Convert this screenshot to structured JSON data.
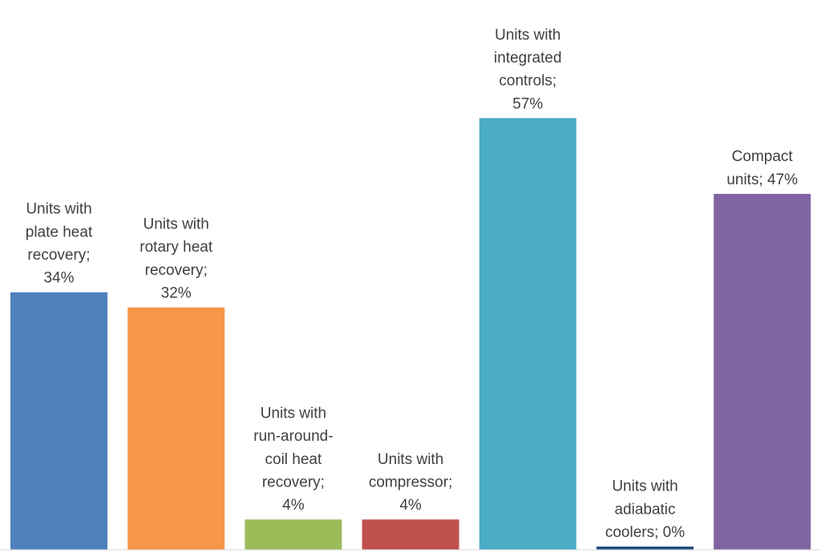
{
  "chart_data": {
    "type": "bar",
    "title": "",
    "xlabel": "",
    "ylabel": "",
    "ylim": [
      0,
      60
    ],
    "grid": false,
    "legend": "none",
    "categories": [
      "Units with plate heat recovery",
      "Units with rotary heat recovery",
      "Units with run-around-coil heat recovery",
      "Units with compressor",
      "Units with integrated controls",
      "Units with adiabatic coolers",
      "Compact units"
    ],
    "values": [
      34,
      32,
      4,
      4,
      57,
      0,
      47
    ],
    "labels": [
      [
        "Units with",
        "plate heat",
        "recovery;",
        "34%"
      ],
      [
        "Units with",
        "rotary heat",
        "recovery;",
        "32%"
      ],
      [
        "Units with",
        "run-around-",
        "coil heat",
        "recovery;",
        "4%"
      ],
      [
        "Units with",
        "compressor;",
        "4%"
      ],
      [
        "Units with",
        "integrated",
        "controls;",
        "57%"
      ],
      [
        "Units with",
        "adiabatic",
        "coolers; 0%"
      ],
      [
        "Compact",
        "units; 47%"
      ]
    ],
    "colors": [
      "#4f81bd",
      "#f79646",
      "#9bbb59",
      "#c0504d",
      "#4bacc6",
      "#1f497d",
      "#8064a2"
    ]
  }
}
